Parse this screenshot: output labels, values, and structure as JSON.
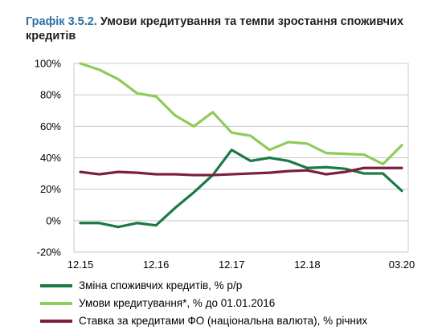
{
  "title": {
    "number": "Графік 3.5.2.",
    "text": "Умови кредитування та темпи зростання споживчих кредитів"
  },
  "chart_data": {
    "type": "line",
    "title": "Графік 3.5.2. Умови кредитування та темпи зростання споживчих кредитів",
    "x": [
      "12.15",
      "01.16",
      "02.16",
      "03.16",
      "04.16",
      "05.16",
      "06.16",
      "07.16",
      "08.16",
      "09.16",
      "10.16",
      "11.16",
      "12.16",
      "01.17",
      "02.17",
      "03.17",
      "04.17",
      "05.17",
      "06.17",
      "07.17",
      "08.17",
      "09.17",
      "10.17",
      "11.17",
      "12.17",
      "01.18",
      "02.18",
      "03.18",
      "04.18",
      "05.18",
      "06.18",
      "07.18",
      "08.18",
      "09.18",
      "10.18",
      "11.18",
      "12.18",
      "01.19",
      "02.19",
      "03.19",
      "04.19",
      "05.19",
      "06.19",
      "07.19",
      "08.19",
      "09.19",
      "10.19",
      "11.19",
      "12.19",
      "01.20",
      "02.20",
      "03.20"
    ],
    "x_ticks": [
      "12.15",
      "12.16",
      "12.17",
      "12.18",
      "03.20"
    ],
    "ylim": [
      -20,
      100
    ],
    "y_ticks": [
      "-20%",
      "0%",
      "20%",
      "40%",
      "60%",
      "80%",
      "100%"
    ],
    "grid": true,
    "legend_position": "bottom",
    "series": [
      {
        "name": "Зміна споживчих кредитів, % р/р",
        "color": "#1a7a45",
        "points": [
          [
            0,
            -1.5
          ],
          [
            3,
            -1.5
          ],
          [
            6,
            -4
          ],
          [
            9,
            -1.5
          ],
          [
            12,
            -3
          ],
          [
            15,
            8
          ],
          [
            18,
            18
          ],
          [
            21,
            29
          ],
          [
            24,
            45
          ],
          [
            27,
            38
          ],
          [
            30,
            40
          ],
          [
            33,
            38
          ],
          [
            36,
            33.5
          ],
          [
            39,
            34
          ],
          [
            42,
            33
          ],
          [
            45,
            30
          ],
          [
            48,
            30
          ],
          [
            51,
            19
          ]
        ]
      },
      {
        "name": "Умови кредитування*, % до 01.01.2016",
        "color": "#8ecb5a",
        "points": [
          [
            0,
            100
          ],
          [
            3,
            96
          ],
          [
            6,
            90
          ],
          [
            9,
            81
          ],
          [
            12,
            79
          ],
          [
            15,
            67
          ],
          [
            18,
            60
          ],
          [
            21,
            69
          ],
          [
            24,
            56
          ],
          [
            27,
            54
          ],
          [
            30,
            45
          ],
          [
            33,
            50
          ],
          [
            36,
            49
          ],
          [
            39,
            43
          ],
          [
            42,
            42.5
          ],
          [
            45,
            42
          ],
          [
            48,
            36
          ],
          [
            51,
            48
          ]
        ]
      },
      {
        "name": "Ставка за кредитами ФО (національна валюта), % річних",
        "color": "#7a1f3d",
        "points": [
          [
            0,
            31
          ],
          [
            3,
            29.5
          ],
          [
            6,
            31
          ],
          [
            9,
            30.5
          ],
          [
            12,
            29.5
          ],
          [
            15,
            29.5
          ],
          [
            18,
            29
          ],
          [
            21,
            29
          ],
          [
            24,
            29.5
          ],
          [
            27,
            30
          ],
          [
            30,
            30.5
          ],
          [
            33,
            31.5
          ],
          [
            36,
            32
          ],
          [
            39,
            29.5
          ],
          [
            42,
            31
          ],
          [
            45,
            33.5
          ],
          [
            48,
            33.5
          ],
          [
            51,
            33.5
          ]
        ]
      }
    ]
  }
}
